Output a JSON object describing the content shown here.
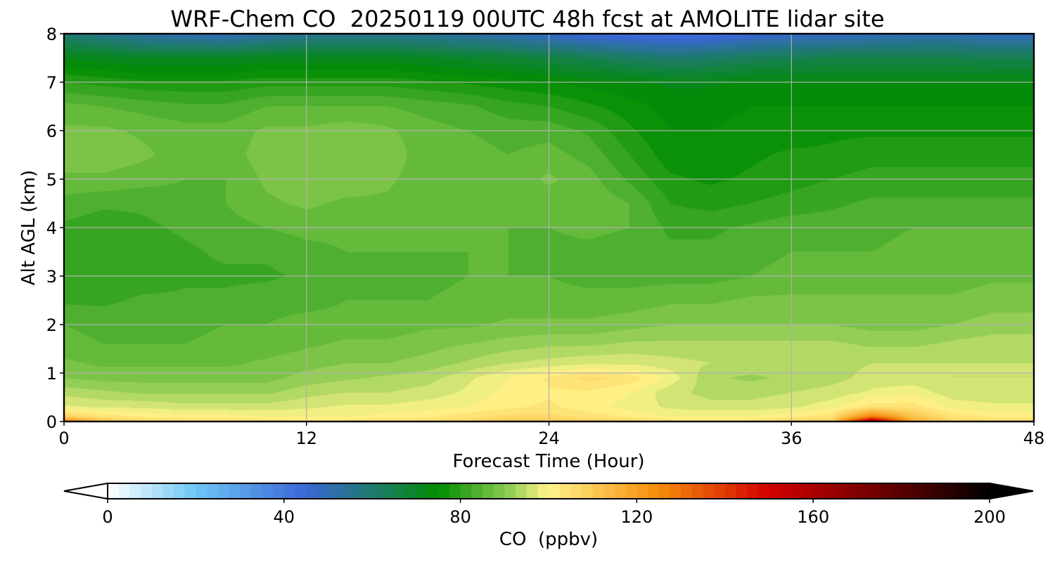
{
  "chart_data": {
    "type": "heatmap",
    "title": "WRF-Chem CO  20250119 00UTC 48h fcst at AMOLITE lidar site",
    "xlabel": "Forecast Time (Hour)",
    "ylabel": "Alt AGL (km)",
    "xlim": [
      0,
      48
    ],
    "ylim": [
      0,
      8
    ],
    "xticks": [
      "0",
      "12",
      "24",
      "36",
      "48"
    ],
    "yticks": [
      "0",
      "1",
      "2",
      "3",
      "4",
      "5",
      "6",
      "7",
      "8"
    ],
    "grid": true,
    "colorbar": {
      "label": "CO  (ppbv)",
      "range": [
        0,
        200
      ],
      "ticks": [
        "0",
        "40",
        "80",
        "120",
        "160",
        "200"
      ],
      "extend": "both",
      "orientation": "horizontal",
      "stops": [
        {
          "v": 0,
          "c": "#ffffff"
        },
        {
          "v": 20,
          "c": "#6ec6f5"
        },
        {
          "v": 45,
          "c": "#3a66d6"
        },
        {
          "v": 60,
          "c": "#1e7a6e"
        },
        {
          "v": 75,
          "c": "#008c00"
        },
        {
          "v": 90,
          "c": "#86c94e"
        },
        {
          "v": 100,
          "c": "#fff48a"
        },
        {
          "v": 125,
          "c": "#f58c0a"
        },
        {
          "v": 150,
          "c": "#d20000"
        },
        {
          "v": 175,
          "c": "#6e0000"
        },
        {
          "v": 200,
          "c": "#000000"
        }
      ]
    },
    "x_hours": [
      0,
      2,
      4,
      6,
      8,
      10,
      12,
      14,
      16,
      18,
      20,
      22,
      24,
      26,
      28,
      30,
      32,
      34,
      36,
      38,
      40,
      42,
      44,
      46,
      48
    ],
    "y_km": [
      0,
      0.1,
      0.3,
      0.6,
      0.9,
      1.2,
      1.6,
      2,
      2.5,
      3,
      3.5,
      4,
      4.5,
      5,
      5.5,
      6,
      6.5,
      7,
      7.5,
      8
    ],
    "z_ppbv": [
      [
        128,
        112,
        108,
        106,
        105,
        105,
        103,
        104,
        105,
        106,
        108,
        112,
        111,
        110,
        108,
        104,
        103,
        104,
        108,
        110,
        165,
        118,
        108,
        106,
        106
      ],
      [
        108,
        104,
        102,
        101,
        101,
        100,
        100,
        100,
        101,
        102,
        104,
        106,
        106,
        104,
        102,
        100,
        100,
        100,
        102,
        104,
        128,
        112,
        104,
        102,
        102
      ],
      [
        98,
        97,
        97,
        96,
        96,
        96,
        97,
        98,
        98,
        99,
        100,
        102,
        103,
        101,
        99,
        97,
        96,
        96,
        97,
        99,
        104,
        104,
        99,
        98,
        98
      ],
      [
        94,
        93,
        92,
        92,
        92,
        92,
        94,
        95,
        95,
        96,
        98,
        101,
        102,
        102,
        100,
        96,
        94,
        94,
        95,
        96,
        98,
        99,
        96,
        96,
        96
      ],
      [
        90,
        89,
        89,
        89,
        89,
        89,
        91,
        92,
        93,
        94,
        97,
        100,
        103,
        106,
        104,
        99,
        93,
        92,
        93,
        94,
        96,
        96,
        95,
        95,
        95
      ],
      [
        88,
        87,
        87,
        87,
        87,
        88,
        89,
        90,
        90,
        91,
        93,
        95,
        96,
        97,
        97,
        96,
        95,
        94,
        94,
        94,
        95,
        95,
        95,
        95,
        95
      ],
      [
        86,
        85,
        85,
        85,
        86,
        86,
        87,
        88,
        88,
        89,
        90,
        91,
        92,
        92,
        93,
        93,
        93,
        93,
        93,
        93,
        92,
        92,
        93,
        94,
        94
      ],
      [
        85,
        84,
        84,
        84,
        85,
        85,
        86,
        86,
        86,
        87,
        87,
        88,
        88,
        88,
        89,
        90,
        90,
        90,
        90,
        90,
        89,
        89,
        90,
        91,
        91
      ],
      [
        82,
        82,
        83,
        83,
        83,
        84,
        84,
        85,
        85,
        85,
        86,
        86,
        86,
        86,
        86,
        87,
        87,
        88,
        88,
        88,
        88,
        88,
        88,
        89,
        89
      ],
      [
        81,
        81,
        81,
        82,
        82,
        82,
        83,
        84,
        84,
        84,
        85,
        85,
        85,
        84,
        84,
        84,
        84,
        85,
        86,
        86,
        86,
        86,
        86,
        87,
        87
      ],
      [
        80,
        80,
        81,
        82,
        83,
        83,
        84,
        85,
        85,
        85,
        85,
        85,
        84,
        84,
        83,
        83,
        83,
        84,
        85,
        85,
        85,
        86,
        86,
        86,
        86
      ],
      [
        82,
        81,
        82,
        83,
        84,
        85,
        86,
        86,
        86,
        85,
        85,
        85,
        85,
        86,
        85,
        82,
        82,
        83,
        84,
        84,
        84,
        85,
        85,
        85,
        85
      ],
      [
        84,
        83,
        83,
        84,
        85,
        87,
        88,
        87,
        87,
        86,
        86,
        86,
        86,
        87,
        85,
        80,
        79,
        80,
        81,
        82,
        83,
        83,
        83,
        83,
        83
      ],
      [
        87,
        87,
        86,
        85,
        85,
        88,
        89,
        89,
        88,
        86,
        87,
        86,
        88,
        86,
        82,
        78,
        77,
        78,
        79,
        80,
        81,
        81,
        81,
        81,
        81
      ],
      [
        89,
        89,
        88,
        86,
        86,
        89,
        89,
        90,
        89,
        86,
        86,
        85,
        86,
        84,
        80,
        76,
        76,
        77,
        78,
        78,
        79,
        79,
        79,
        79,
        79
      ],
      [
        88,
        88,
        87,
        86,
        86,
        88,
        88,
        89,
        88,
        86,
        85,
        84,
        84,
        82,
        78,
        75,
        75,
        76,
        76,
        77,
        77,
        77,
        77,
        77,
        77
      ],
      [
        86,
        85,
        84,
        83,
        83,
        85,
        85,
        85,
        85,
        84,
        83,
        81,
        80,
        78,
        76,
        74,
        74,
        75,
        75,
        75,
        75,
        75,
        75,
        75,
        75
      ],
      [
        80,
        79,
        78,
        78,
        78,
        79,
        79,
        79,
        79,
        78,
        77,
        76,
        75,
        74,
        73,
        72,
        72,
        73,
        73,
        73,
        73,
        73,
        73,
        73,
        73
      ],
      [
        72,
        71,
        70,
        70,
        70,
        71,
        71,
        71,
        71,
        70,
        69,
        68,
        66,
        64,
        62,
        60,
        61,
        63,
        64,
        65,
        65,
        65,
        65,
        64,
        64
      ],
      [
        60,
        56,
        52,
        50,
        49,
        52,
        55,
        55,
        55,
        54,
        52,
        50,
        47,
        44,
        42,
        41,
        42,
        45,
        47,
        48,
        49,
        50,
        50,
        49,
        49
      ]
    ]
  }
}
